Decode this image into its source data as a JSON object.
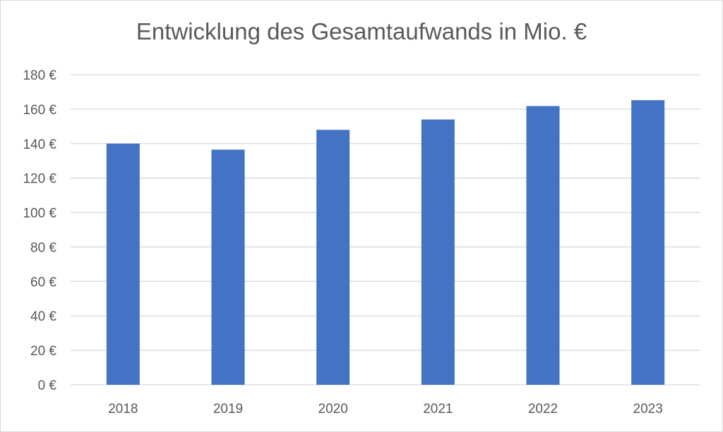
{
  "chart_data": {
    "type": "bar",
    "title": "Entwicklung des Gesamtaufwands in Mio. €",
    "xlabel": "",
    "ylabel": "",
    "categories": [
      "2018",
      "2019",
      "2020",
      "2021",
      "2022",
      "2023"
    ],
    "values": [
      140,
      136.5,
      148,
      154,
      161.8,
      165.2
    ],
    "ylim": [
      0,
      180
    ],
    "yticks": [
      0,
      20,
      40,
      60,
      80,
      100,
      120,
      140,
      160,
      180
    ],
    "ytick_labels": [
      "0 €",
      "20 €",
      "40 €",
      "60 €",
      "80 €",
      "100 €",
      "120 €",
      "140 €",
      "160 €",
      "180 €"
    ],
    "grid": true,
    "legend": "none",
    "bar_color": "#4472c4",
    "grid_color": "#d9d9d9",
    "text_color": "#595959"
  }
}
